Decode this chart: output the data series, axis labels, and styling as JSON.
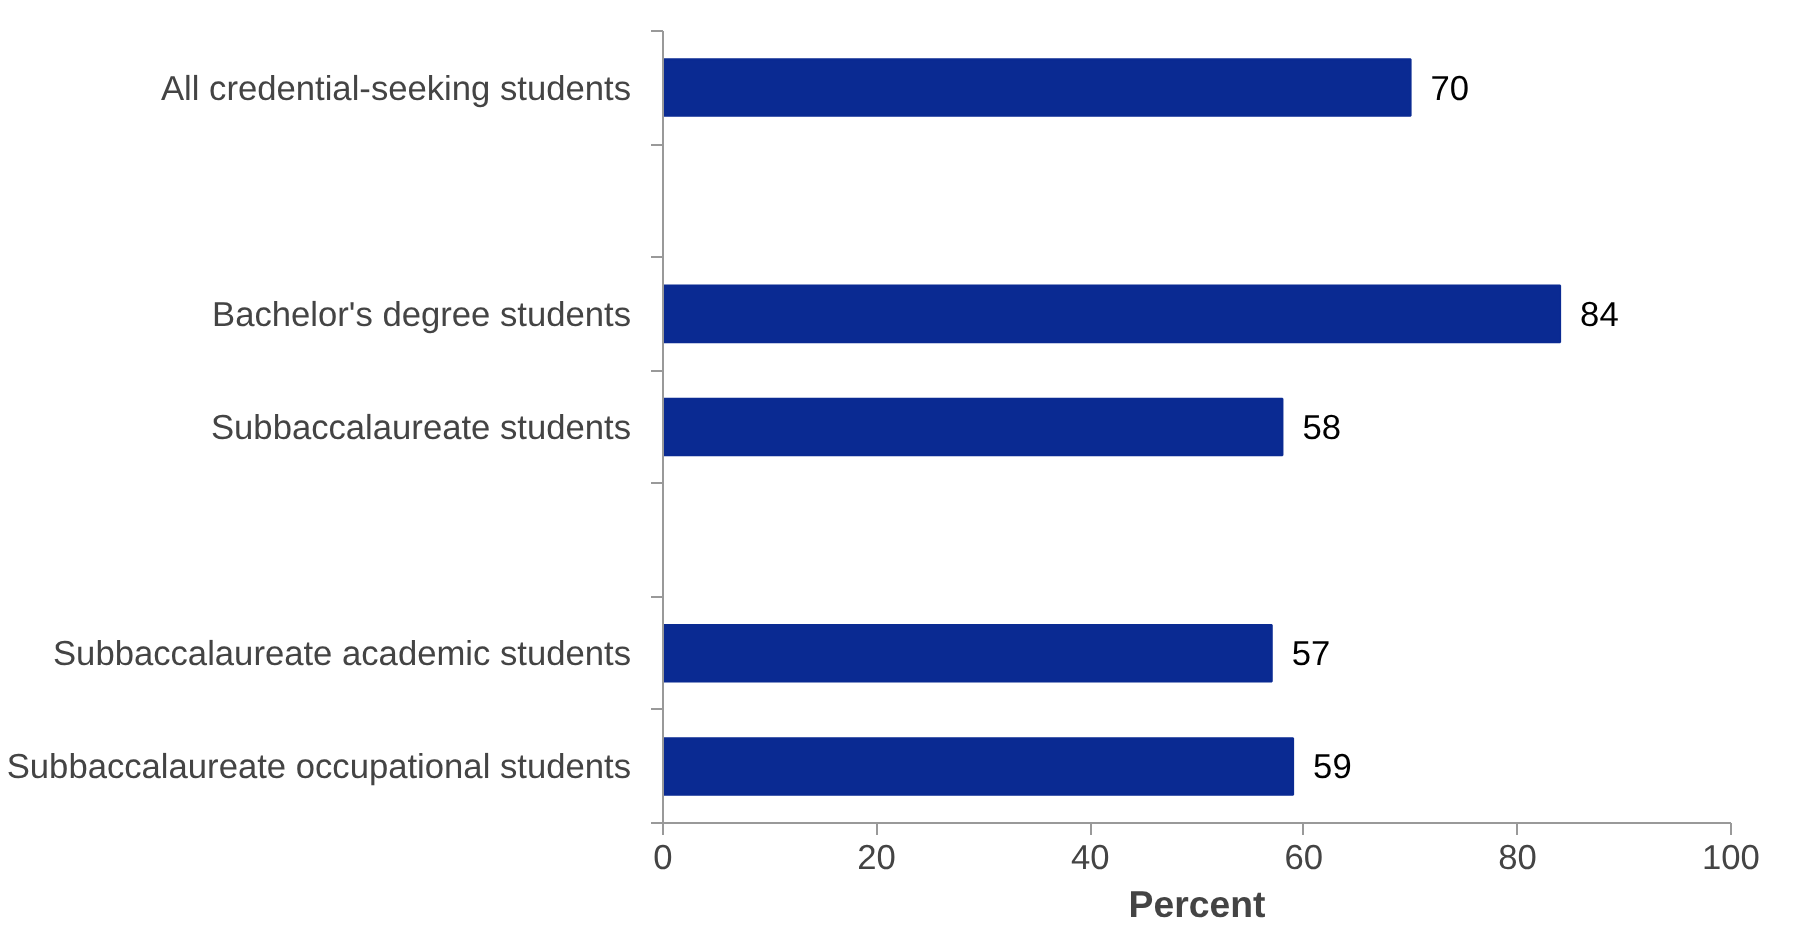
{
  "chart_data": {
    "type": "bar",
    "orientation": "horizontal",
    "xlabel": "Percent",
    "categories": [
      "All credential-seeking students",
      null,
      "Bachelor's degree students",
      "Subbaccalaureate students",
      null,
      "Subbaccalaureate academic students",
      "Subbaccalaureate occupational students"
    ],
    "values": [
      70,
      null,
      84,
      58,
      null,
      57,
      59
    ],
    "color": "#0a2a92",
    "data_labels": true,
    "xlim": [
      0,
      100
    ],
    "xticks": [
      0,
      20,
      40,
      60,
      80,
      100
    ],
    "grid": false
  }
}
